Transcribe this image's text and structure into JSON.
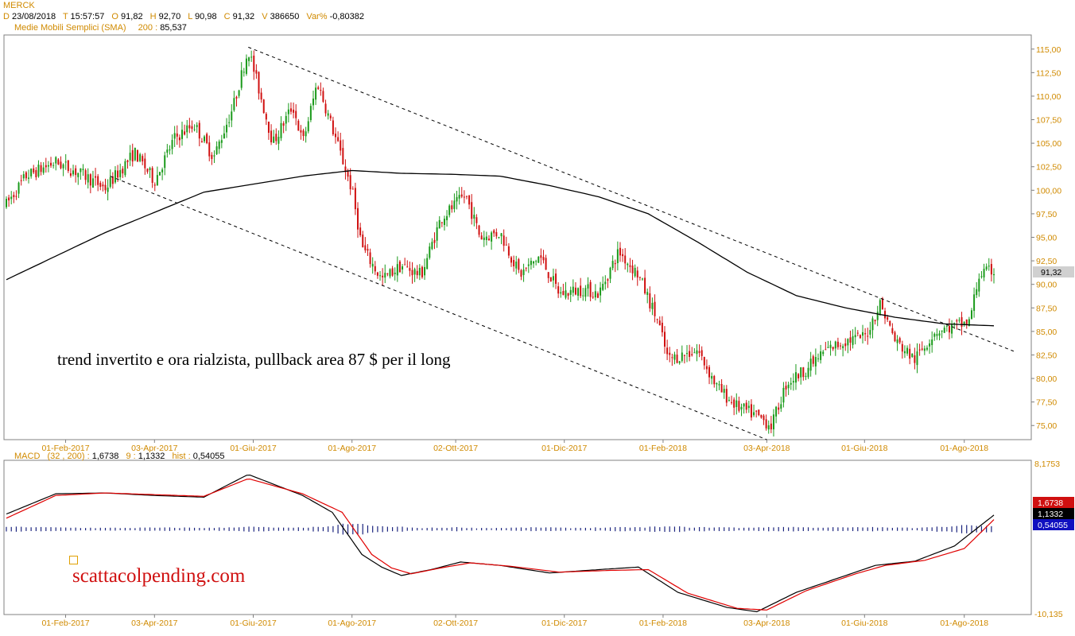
{
  "header": {
    "symbol": "MERCK",
    "d_label": "D",
    "d_value": "23/08/2018",
    "t_label": "T",
    "t_value": "15:57:57",
    "o_label": "O",
    "o_value": "91,82",
    "h_label": "H",
    "h_value": "92,70",
    "l_label": "L",
    "l_value": "90,98",
    "c_label": "C",
    "c_value": "91,32",
    "v_label": "V",
    "v_value": "386650",
    "var_label": "Var%",
    "var_value": "-0,80382"
  },
  "sma_legend": {
    "name": "Medie Mobili Semplici (SMA)",
    "period": "200 :",
    "value": "85,537"
  },
  "macd_legend": {
    "name": "MACD",
    "params": "(32 , 200) :",
    "macd_value": "1,6738",
    "signal_period": "9 :",
    "signal_value": "1,1332",
    "hist_label": "hist :",
    "hist_value": "0,54055"
  },
  "annotation": "trend invertito e ora rialzista, pullback area 87 $ per il long",
  "branding": "scattacolpending.com",
  "colors": {
    "up": "#1a9a1a",
    "down": "#d01010",
    "sma": "#000000",
    "macd": "#000000",
    "signal": "#e00000",
    "hist": "#1a237e",
    "axis_text": "#d08a00"
  },
  "chart_data": [
    {
      "type": "candlestick",
      "title": "MERCK",
      "x_ticks": [
        "01-Feb-2017",
        "03-Apr-2017",
        "01-Giu-2017",
        "01-Ago-2017",
        "02-Ott-2017",
        "01-Dic-2017",
        "01-Feb-2018",
        "03-Apr-2018",
        "01-Giu-2018",
        "01-Ago-2018"
      ],
      "y_ticks": [
        "115,00",
        "112,50",
        "110,00",
        "107,50",
        "105,00",
        "102,50",
        "100,00",
        "97,50",
        "95,00",
        "92,50",
        "90,00",
        "87,50",
        "85,00",
        "82,50",
        "80,00",
        "77,50",
        "75,00"
      ],
      "ylim": [
        73.5,
        116.5
      ],
      "last_price": "91,32",
      "price_path": [
        [
          0,
          98.5
        ],
        [
          0.02,
          101.5
        ],
        [
          0.05,
          103
        ],
        [
          0.08,
          101.5
        ],
        [
          0.1,
          100.2
        ],
        [
          0.13,
          104
        ],
        [
          0.15,
          101
        ],
        [
          0.17,
          105.5
        ],
        [
          0.19,
          107
        ],
        [
          0.21,
          103.5
        ],
        [
          0.23,
          109
        ],
        [
          0.245,
          115
        ],
        [
          0.27,
          105
        ],
        [
          0.29,
          109
        ],
        [
          0.3,
          105
        ],
        [
          0.315,
          111.5
        ],
        [
          0.335,
          105
        ],
        [
          0.35,
          100
        ],
        [
          0.36,
          94
        ],
        [
          0.38,
          90.5
        ],
        [
          0.4,
          92
        ],
        [
          0.42,
          91
        ],
        [
          0.44,
          97
        ],
        [
          0.465,
          99.5
        ],
        [
          0.48,
          95
        ],
        [
          0.5,
          95.5
        ],
        [
          0.52,
          91
        ],
        [
          0.54,
          93
        ],
        [
          0.56,
          89
        ],
        [
          0.585,
          89.5
        ],
        [
          0.6,
          89
        ],
        [
          0.62,
          93.5
        ],
        [
          0.64,
          91
        ],
        [
          0.66,
          86
        ],
        [
          0.67,
          82
        ],
        [
          0.7,
          83
        ],
        [
          0.72,
          79
        ],
        [
          0.74,
          77
        ],
        [
          0.76,
          76
        ],
        [
          0.775,
          75
        ],
        [
          0.79,
          79.5
        ],
        [
          0.81,
          81
        ],
        [
          0.83,
          83
        ],
        [
          0.85,
          84
        ],
        [
          0.87,
          84.5
        ],
        [
          0.885,
          88
        ],
        [
          0.9,
          84
        ],
        [
          0.92,
          82
        ],
        [
          0.94,
          85
        ],
        [
          0.96,
          85.5
        ],
        [
          0.975,
          86
        ],
        [
          0.985,
          91
        ],
        [
          1.0,
          91.5
        ]
      ],
      "sma_path": [
        [
          0,
          90.5
        ],
        [
          0.1,
          95.5
        ],
        [
          0.2,
          99.8
        ],
        [
          0.3,
          101.5
        ],
        [
          0.35,
          102.1
        ],
        [
          0.4,
          101.8
        ],
        [
          0.45,
          101.7
        ],
        [
          0.5,
          101.5
        ],
        [
          0.55,
          100.5
        ],
        [
          0.6,
          99.3
        ],
        [
          0.65,
          97.5
        ],
        [
          0.7,
          94.5
        ],
        [
          0.75,
          91.3
        ],
        [
          0.8,
          88.8
        ],
        [
          0.85,
          87.5
        ],
        [
          0.9,
          86.5
        ],
        [
          0.95,
          85.8
        ],
        [
          1.0,
          85.6
        ]
      ],
      "trendlines": [
        {
          "style": "dashed",
          "from": [
            0.245,
            115.2
          ],
          "to": [
            1.02,
            82.9
          ]
        },
        {
          "style": "dashed",
          "from": [
            0.105,
            101.5
          ],
          "to": [
            0.77,
            73.5
          ]
        }
      ]
    },
    {
      "type": "line",
      "title": "MACD",
      "y_top_label": "8,1753",
      "y_bottom_label": "-10,135",
      "ylim": [
        -10.135,
        8.1753
      ],
      "series": [
        {
          "name": "MACD",
          "values": [
            [
              0,
              1.8
            ],
            [
              0.05,
              4.2
            ],
            [
              0.1,
              4.3
            ],
            [
              0.15,
              4.0
            ],
            [
              0.2,
              3.8
            ],
            [
              0.245,
              6.5
            ],
            [
              0.3,
              4.0
            ],
            [
              0.33,
              2.0
            ],
            [
              0.36,
              -3.0
            ],
            [
              0.38,
              -4.5
            ],
            [
              0.4,
              -5.5
            ],
            [
              0.43,
              -4.8
            ],
            [
              0.46,
              -3.9
            ],
            [
              0.5,
              -4.3
            ],
            [
              0.55,
              -5.2
            ],
            [
              0.6,
              -4.8
            ],
            [
              0.64,
              -4.5
            ],
            [
              0.68,
              -7.5
            ],
            [
              0.73,
              -9.3
            ],
            [
              0.76,
              -9.8
            ],
            [
              0.8,
              -7.5
            ],
            [
              0.85,
              -5.5
            ],
            [
              0.88,
              -4.3
            ],
            [
              0.92,
              -3.8
            ],
            [
              0.96,
              -2.0
            ],
            [
              1.0,
              1.67
            ]
          ]
        },
        {
          "name": "Signal",
          "values": [
            [
              0,
              1.3
            ],
            [
              0.05,
              4.0
            ],
            [
              0.1,
              4.3
            ],
            [
              0.15,
              4.1
            ],
            [
              0.2,
              3.9
            ],
            [
              0.245,
              6.0
            ],
            [
              0.3,
              4.2
            ],
            [
              0.34,
              2.0
            ],
            [
              0.37,
              -3.0
            ],
            [
              0.39,
              -4.6
            ],
            [
              0.41,
              -5.3
            ],
            [
              0.44,
              -4.6
            ],
            [
              0.47,
              -4.0
            ],
            [
              0.51,
              -4.4
            ],
            [
              0.56,
              -5.1
            ],
            [
              0.61,
              -4.9
            ],
            [
              0.65,
              -4.8
            ],
            [
              0.69,
              -7.6
            ],
            [
              0.74,
              -9.4
            ],
            [
              0.77,
              -9.6
            ],
            [
              0.81,
              -7.3
            ],
            [
              0.86,
              -5.3
            ],
            [
              0.89,
              -4.3
            ],
            [
              0.93,
              -3.7
            ],
            [
              0.97,
              -2.3
            ],
            [
              1.0,
              1.13
            ]
          ]
        }
      ],
      "histogram_label": "hist",
      "histogram_last": "0,54055"
    }
  ]
}
